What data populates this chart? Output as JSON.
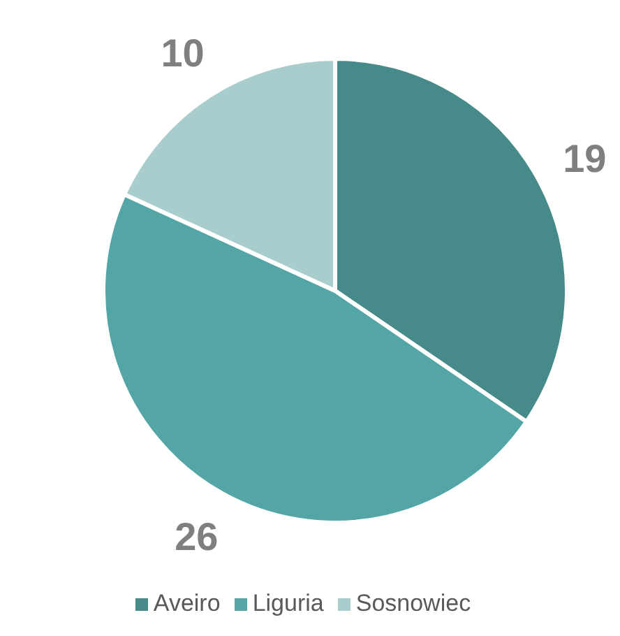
{
  "chart_data": {
    "type": "pie",
    "categories": [
      "Aveiro",
      "Liguria",
      "Sosnowiec"
    ],
    "values": [
      19,
      26,
      10
    ],
    "colors": [
      "#468a89",
      "#53a6a5",
      "#a9cccd"
    ],
    "data_labels": true,
    "legend": "bottom"
  }
}
